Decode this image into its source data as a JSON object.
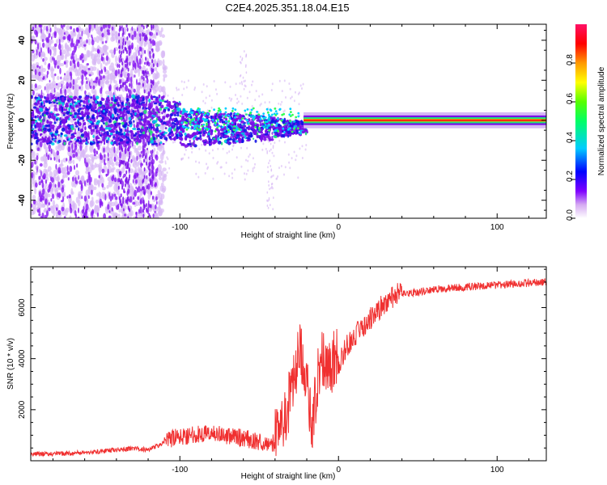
{
  "title": "C2E4.2025.351.18.04.E15",
  "chart_data": [
    {
      "type": "heatmap",
      "xlabel": "Height of straight line (km)",
      "ylabel": "Frequency (Hz)",
      "xlim": [
        -194,
        131
      ],
      "ylim": [
        -49,
        48
      ],
      "xticks": [
        -100,
        0,
        100
      ],
      "yticks": [
        -40,
        -20,
        0,
        20,
        40
      ],
      "colorbar": {
        "label": "Normalized spectral amplitude",
        "range": [
          0,
          1
        ],
        "ticks": [
          "0.0",
          "0.2",
          "0.4",
          "0.6",
          "0.8"
        ]
      }
    },
    {
      "type": "line",
      "xlabel": "Height of straight line (km)",
      "ylabel": "SNR (10 * v/v)",
      "xlim": [
        -194,
        131
      ],
      "ylim": [
        0,
        7600
      ],
      "xticks": [
        -100,
        0,
        100
      ],
      "yticks": [
        2000,
        4000,
        6000
      ],
      "color": "#f03030",
      "x": [
        -194,
        -170,
        -150,
        -130,
        -120,
        -110,
        -100,
        -90,
        -80,
        -70,
        -60,
        -50,
        -40,
        -35,
        -32,
        -30,
        -27,
        -25,
        -22,
        -20,
        -17,
        -15,
        -12,
        -10,
        -5,
        0,
        5,
        10,
        20,
        30,
        40,
        60,
        80,
        100,
        120,
        131
      ],
      "y": [
        220,
        250,
        330,
        450,
        400,
        650,
        800,
        900,
        950,
        850,
        750,
        600,
        550,
        1100,
        1600,
        2200,
        3000,
        3800,
        3600,
        2500,
        800,
        1800,
        3200,
        3600,
        3300,
        3600,
        4300,
        4700,
        5400,
        6050,
        6450,
        6650,
        6750,
        6820,
        6900,
        6950
      ]
    }
  ]
}
